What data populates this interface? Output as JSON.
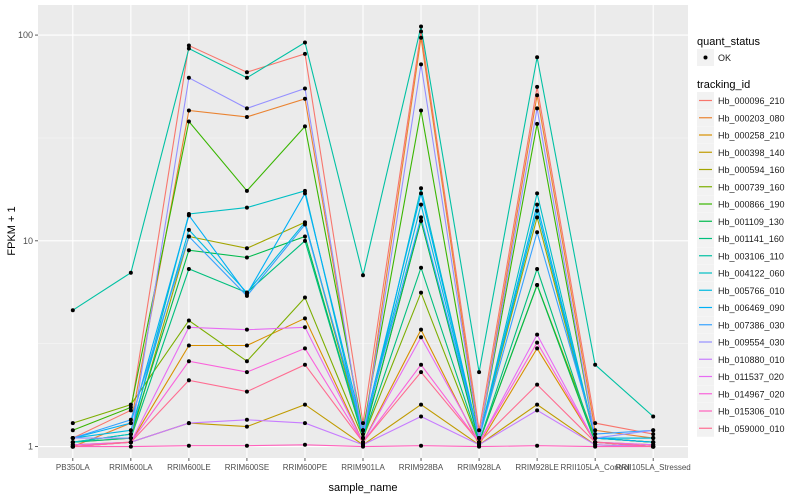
{
  "chart_data": {
    "type": "line",
    "xlabel": "sample_name",
    "ylabel": "FPKM + 1",
    "y_scale": "log10",
    "ylim": [
      0.88,
      140
    ],
    "y_ticks": [
      "1",
      "10",
      "100"
    ],
    "y_tick_values": [
      1,
      10,
      100
    ],
    "grid": true,
    "legend_position": "right",
    "categories": [
      "PB350LA",
      "RRIM600LA",
      "RRIM600LE",
      "RRIM600SE",
      "RRIM600PE",
      "RRIM901LA",
      "RRIM928BA",
      "RRIM928LA",
      "RRIM928LE",
      "RRII105LA_Control",
      "RRII105LA_Stressed"
    ],
    "shape_legend": {
      "title": "quant_status",
      "items": [
        "OK"
      ]
    },
    "color_legend_title": "tracking_id",
    "series": [
      {
        "name": "Hb_000096_210",
        "color": "#F8766D",
        "values": [
          1.1,
          1.5,
          89,
          66,
          81,
          1.3,
          104,
          1.2,
          56,
          1.3,
          1.15
        ]
      },
      {
        "name": "Hb_000203_080",
        "color": "#EA8331",
        "values": [
          1.0,
          1.3,
          43,
          40,
          49,
          1.1,
          97,
          1.1,
          51,
          1.2,
          1.1
        ]
      },
      {
        "name": "Hb_000258_210",
        "color": "#D89000",
        "values": [
          1.02,
          1.05,
          3.1,
          3.1,
          4.2,
          1.05,
          3.7,
          1.02,
          3.0,
          1.05,
          1.02
        ]
      },
      {
        "name": "Hb_000398_140",
        "color": "#C09B00",
        "values": [
          1.0,
          1.05,
          1.3,
          1.25,
          1.6,
          1.02,
          1.6,
          1.02,
          1.6,
          1.02,
          1.0
        ]
      },
      {
        "name": "Hb_000594_160",
        "color": "#A3A500",
        "values": [
          1.05,
          1.1,
          10.5,
          9.2,
          12.3,
          1.1,
          12.5,
          1.1,
          13,
          1.1,
          1.05
        ]
      },
      {
        "name": "Hb_000739_160",
        "color": "#7CAE00",
        "values": [
          1.3,
          1.6,
          4.1,
          2.6,
          5.3,
          1.1,
          5.6,
          1.05,
          6.1,
          1.1,
          1.05
        ]
      },
      {
        "name": "Hb_000866_190",
        "color": "#39B600",
        "values": [
          1.2,
          1.55,
          38,
          17.5,
          36,
          1.2,
          43,
          1.1,
          37,
          1.1,
          1.05
        ]
      },
      {
        "name": "Hb_001109_130",
        "color": "#00BB4E",
        "values": [
          1.05,
          1.15,
          9,
          8.3,
          10.5,
          1.1,
          12.5,
          1.05,
          6.1,
          1.05,
          1.0
        ]
      },
      {
        "name": "Hb_001141_160",
        "color": "#00BF7D",
        "values": [
          1.05,
          1.1,
          7.3,
          5.6,
          10,
          1.1,
          7.4,
          1.05,
          7.3,
          1.05,
          1.0
        ]
      },
      {
        "name": "Hb_003106_110",
        "color": "#00C1A3",
        "values": [
          4.6,
          7,
          86,
          62,
          92,
          6.8,
          110,
          2.3,
          78,
          2.5,
          1.4
        ]
      },
      {
        "name": "Hb_004122_060",
        "color": "#00BFC4",
        "values": [
          1.05,
          1.15,
          13.5,
          14.5,
          17.5,
          1.1,
          18,
          1.1,
          17,
          1.1,
          1.1
        ]
      },
      {
        "name": "Hb_005766_010",
        "color": "#00BAE0",
        "values": [
          1.1,
          1.2,
          11.3,
          5.6,
          12.3,
          1.15,
          15,
          1.1,
          14,
          1.1,
          1.1
        ]
      },
      {
        "name": "Hb_006469_090",
        "color": "#00B0F6",
        "values": [
          1.1,
          1.3,
          13.3,
          5.5,
          17,
          1.2,
          17,
          1.1,
          15,
          1.1,
          1.05
        ]
      },
      {
        "name": "Hb_007386_030",
        "color": "#35A2FF",
        "values": [
          1.1,
          1.35,
          10.5,
          5.4,
          12,
          1.2,
          13,
          1.1,
          11,
          1.15,
          1.2
        ]
      },
      {
        "name": "Hb_009554_030",
        "color": "#9590FF",
        "values": [
          1.1,
          1.1,
          62,
          44,
          55,
          1.1,
          72,
          1.1,
          44,
          1.1,
          1.2
        ]
      },
      {
        "name": "Hb_010880_010",
        "color": "#C77CFF",
        "values": [
          1.0,
          1.05,
          1.3,
          1.35,
          1.3,
          1.02,
          1.4,
          1.02,
          1.5,
          1.02,
          1.0
        ]
      },
      {
        "name": "Hb_011537_020",
        "color": "#E76BF3",
        "values": [
          1.02,
          1.05,
          3.8,
          3.7,
          3.8,
          1.05,
          3.4,
          1.05,
          3.5,
          1.05,
          1.02
        ]
      },
      {
        "name": "Hb_014967_020",
        "color": "#FA62DB",
        "values": [
          1.0,
          1.05,
          2.6,
          2.3,
          3.0,
          1.05,
          2.5,
          1.05,
          3.2,
          1.05,
          1.0
        ]
      },
      {
        "name": "Hb_015306_010",
        "color": "#FF62BC",
        "values": [
          1.0,
          1.0,
          1.01,
          1.01,
          1.02,
          1.0,
          1.01,
          1.0,
          1.01,
          1.0,
          1.0
        ]
      },
      {
        "name": "Hb_059000_010",
        "color": "#FF6C91",
        "values": [
          1.0,
          1.05,
          2.1,
          1.85,
          2.5,
          1.05,
          2.3,
          1.05,
          2.0,
          1.05,
          1.0
        ]
      }
    ]
  }
}
